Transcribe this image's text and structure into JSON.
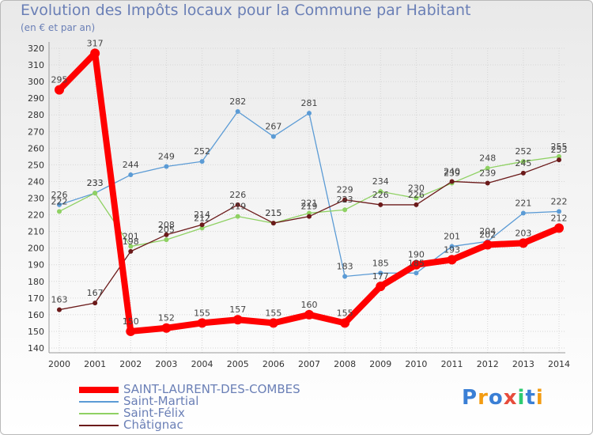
{
  "title": "Evolution des Impôts locaux pour la Commune par Habitant",
  "subtitle": "(en € et par an)",
  "logo": "Proxiti",
  "chart_data": {
    "type": "line",
    "title": "Evolution des Impôts locaux pour la Commune par Habitant",
    "subtitle": "(en € et par an)",
    "x": [
      "2000",
      "2001",
      "2002",
      "2003",
      "2004",
      "2005",
      "2006",
      "2007",
      "2008",
      "2009",
      "2010",
      "2011",
      "2012",
      "2013",
      "2014"
    ],
    "ylim": [
      140,
      320
    ],
    "yticks": [
      140,
      150,
      160,
      170,
      180,
      190,
      200,
      210,
      220,
      230,
      240,
      250,
      260,
      270,
      280,
      290,
      300,
      310,
      320
    ],
    "grid": true,
    "legend_position": "bottom-left",
    "series": [
      {
        "name": "Saint-Martial",
        "color": "#5b9bd5",
        "values": [
          226,
          233,
          244,
          249,
          252,
          282,
          267,
          281,
          183,
          185,
          185,
          201,
          204,
          221,
          222
        ]
      },
      {
        "name": "Saint-Félix",
        "color": "#8fd163",
        "values": [
          222,
          233,
          201,
          205,
          212,
          219,
          215,
          221,
          223,
          234,
          230,
          239,
          248,
          252,
          255
        ]
      },
      {
        "name": "Châtignac",
        "color": "#6b1a1a",
        "values": [
          163,
          167,
          198,
          208,
          214,
          226,
          215,
          219,
          229,
          226,
          226,
          240,
          239,
          245,
          253
        ]
      },
      {
        "name": "SAINT-LAURENT-DES-COMBES",
        "color": "#ff0000",
        "values": [
          295,
          317,
          150,
          152,
          155,
          157,
          155,
          160,
          155,
          177,
          190,
          193,
          202,
          203,
          212
        ]
      }
    ],
    "visible_labels": {
      "Saint-Martial": [
        "226",
        "233",
        "244",
        "249",
        "252",
        "282",
        "267",
        "281",
        "183",
        "185",
        "185",
        "201",
        "204",
        "221",
        "222"
      ],
      "Saint-Félix": [
        "222",
        "233",
        "201",
        "205",
        "212",
        "219",
        "215",
        "221",
        "223",
        "234",
        "230",
        "239",
        "248",
        "252",
        "255"
      ],
      "Châtignac": [
        "163",
        "167",
        "198",
        "208",
        "214",
        "226",
        "215",
        "219",
        "229",
        "226",
        "226",
        "240",
        "239",
        "245",
        "253"
      ],
      "SAINT-LAURENT-DES-COMBES": [
        "295",
        "317",
        "150",
        "152",
        "155",
        "157",
        "155",
        "160",
        "155",
        "177",
        "190",
        "193",
        "202",
        "203",
        "212"
      ]
    }
  },
  "legend": [
    {
      "label": "SAINT-LAURENT-DES-COMBES",
      "color": "#ff0000",
      "thickness": 8
    },
    {
      "label": "Saint-Martial",
      "color": "#5b9bd5",
      "thickness": 2
    },
    {
      "label": "Saint-Félix",
      "color": "#8fd163",
      "thickness": 2
    },
    {
      "label": "Châtignac",
      "color": "#6b1a1a",
      "thickness": 2
    }
  ]
}
